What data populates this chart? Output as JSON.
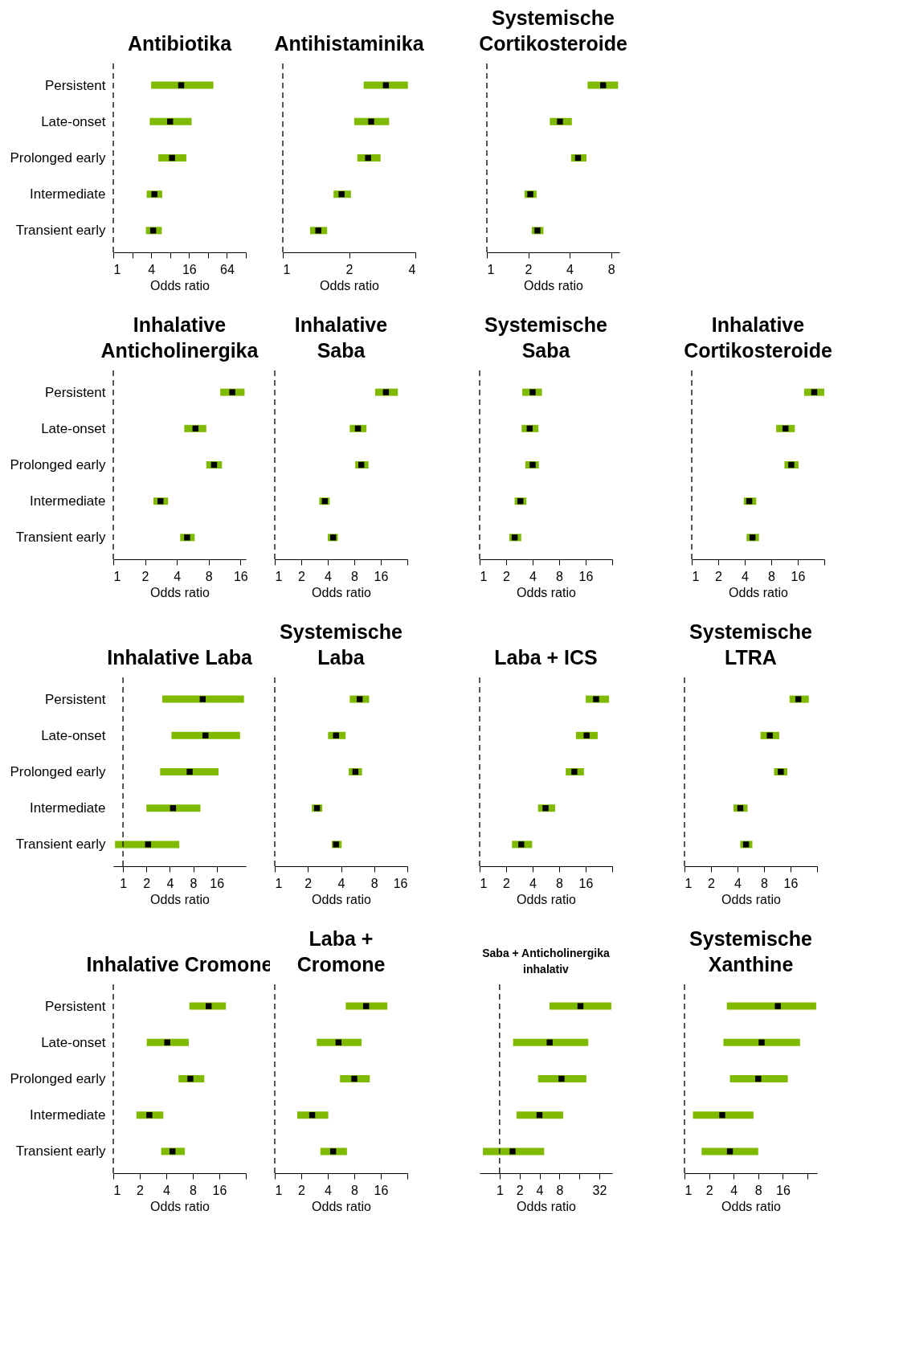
{
  "chart_data": [
    {
      "type": "scatter",
      "orientation": "horizontal",
      "title": "Antibiotika",
      "xlabel": "Odds ratio",
      "log": "x",
      "marker": "square",
      "grid": false,
      "categories": [
        "Persistent",
        "Late-onset",
        "Prolonged early",
        "Intermediate",
        "Transient early"
      ],
      "xlim": [
        1,
        128
      ],
      "xticks": [
        1,
        {
          "value": 2,
          "label": null
        },
        4,
        {
          "value": 8,
          "label": null
        },
        16,
        {
          "value": 32,
          "label": null
        },
        64,
        {
          "value": 128,
          "label": null
        }
      ],
      "ref_lines": [
        {
          "axis": "x",
          "value": 1,
          "line_style": "dashed"
        }
      ],
      "series": [
        {
          "color": "#000000",
          "values": [
            12,
            8,
            8.6,
            4.5,
            4.3
          ],
          "errors": [
            [
              4,
              39
            ],
            [
              3.8,
              17.6
            ],
            [
              5.2,
              14.5
            ],
            [
              3.4,
              6
            ],
            [
              3.3,
              5.9
            ]
          ]
        }
      ]
    },
    {
      "type": "scatter",
      "orientation": "horizontal",
      "title": "Antihistaminika",
      "xlabel": "Odds ratio",
      "log": "x",
      "marker": "square",
      "grid": false,
      "tick_labels": "x",
      "categories": [
        null,
        null,
        null,
        null,
        null
      ],
      "xlim": [
        1,
        4
      ],
      "xticks": [
        1,
        2,
        4
      ],
      "ref_lines": [
        {
          "axis": "x",
          "value": 1,
          "line_style": "dashed"
        }
      ],
      "series": [
        {
          "color": "#000000",
          "values": [
            2.94,
            2.52,
            2.44,
            1.85,
            1.45
          ],
          "errors": [
            [
              2.33,
              3.7
            ],
            [
              2.11,
              3.04
            ],
            [
              2.18,
              2.78
            ],
            [
              1.7,
              2.04
            ],
            [
              1.33,
              1.59
            ]
          ]
        }
      ]
    },
    {
      "type": "scatter",
      "orientation": "horizontal",
      "title": "Systemische\nCortikosteroide",
      "xlabel": "Odds ratio",
      "log": "x",
      "marker": "square",
      "grid": false,
      "tick_labels": "x",
      "categories": [
        null,
        null,
        null,
        null,
        null
      ],
      "xlim": [
        1,
        9.2
      ],
      "xticks": [
        1,
        2,
        4,
        8
      ],
      "ref_lines": [
        {
          "axis": "x",
          "value": 1,
          "line_style": "dashed"
        }
      ],
      "series": [
        {
          "color": "#000000",
          "values": [
            7,
            3.4,
            4.6,
            2.07,
            2.33
          ],
          "errors": [
            [
              5.4,
              9
            ],
            [
              2.87,
              4.15
            ],
            [
              4.1,
              5.3
            ],
            [
              1.88,
              2.3
            ],
            [
              2.12,
              2.58
            ]
          ]
        }
      ]
    },
    {
      "type": "scatter",
      "orientation": "horizontal",
      "title": "Inhalative\nAnticholinergika",
      "xlabel": "Odds ratio",
      "log": "x",
      "marker": "square",
      "grid": false,
      "categories": [
        "Persistent",
        "Late-onset",
        "Prolonged early",
        "Intermediate",
        "Transient early"
      ],
      "xlim": [
        1,
        18
      ],
      "xticks": [
        1,
        2,
        4,
        8,
        16
      ],
      "ref_lines": [
        {
          "axis": "x",
          "value": 1,
          "line_style": "dashed"
        }
      ],
      "series": [
        {
          "color": "#000000",
          "values": [
            13.4,
            6,
            9,
            2.8,
            5
          ],
          "errors": [
            [
              10.3,
              17.5
            ],
            [
              4.7,
              7.6
            ],
            [
              7.6,
              10.7
            ],
            [
              2.4,
              3.3
            ],
            [
              4.3,
              5.9
            ]
          ]
        }
      ]
    },
    {
      "type": "scatter",
      "orientation": "horizontal",
      "title": "Inhalative\nSaba",
      "xlabel": "Odds ratio",
      "log": "x",
      "marker": "square",
      "grid": false,
      "tick_labels": "x",
      "categories": [
        null,
        null,
        null,
        null,
        null
      ],
      "xlim": [
        1,
        32
      ],
      "xticks": [
        1,
        2,
        4,
        8,
        16,
        {
          "value": 32,
          "label": null
        }
      ],
      "ref_lines": [
        {
          "axis": "x",
          "value": 1,
          "line_style": "dashed"
        }
      ],
      "series": [
        {
          "color": "#000000",
          "values": [
            18.3,
            8.8,
            9.6,
            3.7,
            4.6
          ],
          "errors": [
            [
              13.8,
              25
            ],
            [
              7.1,
              11
            ],
            [
              8.2,
              11.6
            ],
            [
              3.2,
              4.2
            ],
            [
              4,
              5.2
            ]
          ]
        }
      ]
    },
    {
      "type": "scatter",
      "orientation": "horizontal",
      "title": "Systemische\nSaba",
      "xlabel": "Odds ratio",
      "log": "x",
      "marker": "square",
      "grid": false,
      "tick_labels": "x",
      "categories": [
        null,
        null,
        null,
        null,
        null
      ],
      "xlim": [
        1,
        32
      ],
      "xticks": [
        1,
        2,
        4,
        8,
        16,
        {
          "value": 32,
          "label": null
        }
      ],
      "ref_lines": [
        {
          "axis": "x",
          "value": 1,
          "line_style": "dashed"
        }
      ],
      "series": [
        {
          "color": "#000000",
          "values": [
            4,
            3.7,
            4,
            2.9,
            2.5
          ],
          "errors": [
            [
              3.05,
              5.1
            ],
            [
              3,
              4.65
            ],
            [
              3.3,
              4.7
            ],
            [
              2.5,
              3.4
            ],
            [
              2.17,
              2.97
            ]
          ]
        }
      ]
    },
    {
      "type": "scatter",
      "orientation": "horizontal",
      "title": "Inhalative\nCortikosteroide",
      "xlabel": "Odds ratio",
      "log": "x",
      "marker": "square",
      "grid": false,
      "tick_labels": "x",
      "categories": [
        null,
        null,
        null,
        null,
        null
      ],
      "xlim": [
        1,
        32
      ],
      "xticks": [
        1,
        2,
        4,
        8,
        16,
        {
          "value": 32,
          "label": null
        }
      ],
      "ref_lines": [
        {
          "axis": "x",
          "value": 1,
          "line_style": "dashed"
        }
      ],
      "series": [
        {
          "color": "#000000",
          "values": [
            24.6,
            11.6,
            13.5,
            4.5,
            4.9
          ],
          "errors": [
            [
              18.9,
              32
            ],
            [
              9.1,
              14.8
            ],
            [
              11.3,
              16.3
            ],
            [
              3.9,
              5.4
            ],
            [
              4.2,
              5.8
            ]
          ]
        }
      ]
    },
    {
      "type": "scatter",
      "orientation": "horizontal",
      "title": "Inhalative Laba",
      "xlabel": "Odds ratio",
      "log": "x",
      "marker": "square",
      "grid": false,
      "categories": [
        "Persistent",
        "Late-onset",
        "Prolonged early",
        "Intermediate",
        "Transient early"
      ],
      "xlim": [
        0.75,
        38
      ],
      "xticks": [
        1,
        2,
        4,
        8,
        16
      ],
      "ref_lines": [
        {
          "axis": "x",
          "value": 1,
          "line_style": "dashed"
        }
      ],
      "series": [
        {
          "color": "#000000",
          "values": [
            10.6,
            11.5,
            7.2,
            4.4,
            2.1
          ],
          "errors": [
            [
              3.2,
              36
            ],
            [
              4.2,
              32
            ],
            [
              3,
              16.9
            ],
            [
              2,
              9.9
            ],
            [
              0.79,
              5.3
            ]
          ]
        }
      ]
    },
    {
      "type": "scatter",
      "orientation": "horizontal",
      "title": "Systemische\nLaba",
      "xlabel": "Odds ratio",
      "log": "x",
      "marker": "square",
      "grid": false,
      "tick_labels": "x",
      "categories": [
        null,
        null,
        null,
        null,
        null
      ],
      "xlim": [
        1,
        16
      ],
      "xticks": [
        1,
        2,
        4,
        8,
        16
      ],
      "ref_lines": [
        {
          "axis": "x",
          "value": 1,
          "line_style": "dashed"
        }
      ],
      "series": [
        {
          "color": "#000000",
          "values": [
            5.9,
            3.6,
            5.4,
            2.42,
            3.6
          ],
          "errors": [
            [
              4.8,
              7.2
            ],
            [
              3.05,
              4.4
            ],
            [
              4.7,
              6.2
            ],
            [
              2.17,
              2.7
            ],
            [
              3.3,
              4.05
            ]
          ]
        }
      ]
    },
    {
      "type": "scatter",
      "orientation": "horizontal",
      "title": "Laba + ICS",
      "xlabel": "Odds ratio",
      "log": "x",
      "marker": "square",
      "grid": false,
      "tick_labels": "x",
      "categories": [
        null,
        null,
        null,
        null,
        null
      ],
      "xlim": [
        1,
        32
      ],
      "xticks": [
        1,
        2,
        4,
        8,
        16,
        {
          "value": 32,
          "label": null
        }
      ],
      "ref_lines": [
        {
          "axis": "x",
          "value": 1,
          "line_style": "dashed"
        }
      ],
      "series": [
        {
          "color": "#000000",
          "values": [
            21,
            16.4,
            11.9,
            5.6,
            2.97
          ],
          "errors": [
            [
              16,
              29.5
            ],
            [
              12.4,
              21.9
            ],
            [
              9.5,
              15.3
            ],
            [
              4.6,
              7.2
            ],
            [
              2.33,
              3.95
            ]
          ]
        }
      ]
    },
    {
      "type": "scatter",
      "orientation": "horizontal",
      "title": "Systemische\nLTRA",
      "xlabel": "Odds ratio",
      "log": "x",
      "marker": "square",
      "grid": false,
      "tick_labels": "x",
      "categories": [
        null,
        null,
        null,
        null,
        null
      ],
      "xlim": [
        1,
        32
      ],
      "xticks": [
        1,
        2,
        4,
        8,
        16,
        {
          "value": 32,
          "label": null
        }
      ],
      "ref_lines": [
        {
          "axis": "x",
          "value": 1,
          "line_style": "dashed"
        }
      ],
      "series": [
        {
          "color": "#000000",
          "values": [
            19.6,
            9.3,
            12.4,
            4.3,
            5
          ],
          "errors": [
            [
              15.6,
              25.8
            ],
            [
              7.3,
              11.9
            ],
            [
              10.4,
              14.7
            ],
            [
              3.6,
              5.2
            ],
            [
              4.3,
              5.9
            ]
          ]
        }
      ]
    },
    {
      "type": "scatter",
      "orientation": "horizontal",
      "title": "Inhalative Cromone",
      "xlabel": "Odds ratio",
      "log": "x",
      "marker": "square",
      "grid": false,
      "categories": [
        "Persistent",
        "Late-onset",
        "Prolonged early",
        "Intermediate",
        "Transient early"
      ],
      "xlim": [
        1,
        32
      ],
      "xticks": [
        1,
        2,
        4,
        8,
        16,
        {
          "value": 32,
          "label": null
        }
      ],
      "ref_lines": [
        {
          "axis": "x",
          "value": 1,
          "line_style": "dashed"
        }
      ],
      "series": [
        {
          "color": "#000000",
          "values": [
            12.1,
            4.1,
            7.5,
            2.57,
            4.7
          ],
          "errors": [
            [
              7.3,
              19
            ],
            [
              2.4,
              7.2
            ],
            [
              5.5,
              10.8
            ],
            [
              1.83,
              3.7
            ],
            [
              3.5,
              6.5
            ]
          ]
        }
      ]
    },
    {
      "type": "scatter",
      "orientation": "horizontal",
      "title": "Laba +\nCromone",
      "xlabel": "Odds ratio",
      "log": "x",
      "marker": "square",
      "grid": false,
      "tick_labels": "x",
      "categories": [
        null,
        null,
        null,
        null,
        null
      ],
      "xlim": [
        1,
        32
      ],
      "xticks": [
        1,
        2,
        4,
        8,
        16,
        {
          "value": 32,
          "label": null
        }
      ],
      "ref_lines": [
        {
          "axis": "x",
          "value": 1,
          "line_style": "dashed"
        }
      ],
      "series": [
        {
          "color": "#000000",
          "values": [
            10.9,
            5.3,
            8,
            2.66,
            4.6
          ],
          "errors": [
            [
              6.4,
              19
            ],
            [
              3,
              9.7
            ],
            [
              5.5,
              12
            ],
            [
              1.8,
              4.05
            ],
            [
              3.3,
              6.6
            ]
          ]
        }
      ]
    },
    {
      "type": "scatter",
      "orientation": "horizontal",
      "title": "Saba + Anticholinergika\ninhalativ",
      "xlabel": "Odds ratio",
      "log": "x",
      "marker": "square",
      "grid": false,
      "tick_labels": "x",
      "categories": [
        null,
        null,
        null,
        null,
        null
      ],
      "xlim": [
        0.5,
        50
      ],
      "xticks": [
        1,
        2,
        4,
        8,
        {
          "value": 16,
          "label": null
        },
        32
      ],
      "ref_lines": [
        {
          "axis": "x",
          "value": 1,
          "line_style": "dashed"
        }
      ],
      "series": [
        {
          "color": "#000000",
          "values": [
            16.6,
            5.7,
            8.6,
            4,
            1.57
          ],
          "errors": [
            [
              5.65,
              48.5
            ],
            [
              1.6,
              21.8
            ],
            [
              3.8,
              20.4
            ],
            [
              1.8,
              9.1
            ],
            [
              0.56,
              4.7
            ]
          ]
        }
      ]
    },
    {
      "type": "scatter",
      "orientation": "horizontal",
      "title": "Systemische\nXanthine",
      "xlabel": "Odds ratio",
      "log": "x",
      "marker": "square",
      "grid": false,
      "tick_labels": "x",
      "categories": [
        null,
        null,
        null,
        null,
        null
      ],
      "xlim": [
        1,
        42
      ],
      "xticks": [
        1,
        2,
        4,
        8,
        16,
        {
          "value": 32,
          "label": null
        }
      ],
      "ref_lines": [
        {
          "axis": "x",
          "value": 1,
          "line_style": "dashed"
        }
      ],
      "series": [
        {
          "color": "#000000",
          "values": [
            13.9,
            8.8,
            8,
            2.9,
            3.6
          ],
          "errors": [
            [
              3.3,
              41
            ],
            [
              3,
              26
            ],
            [
              3.6,
              18.4
            ],
            [
              1.27,
              7
            ],
            [
              1.62,
              8
            ]
          ]
        }
      ]
    }
  ]
}
